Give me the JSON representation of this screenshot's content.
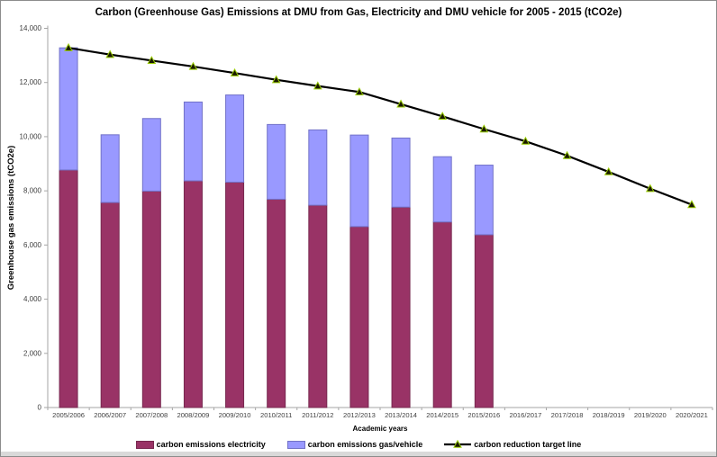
{
  "title": "Carbon (Greenhouse Gas) Emissions at DMU from Gas, Electricity and DMU vehicle for 2005 - 2015 (tCO2e)",
  "chart_data": {
    "type": "bar",
    "subtype": "stacked-bars-with-target-line",
    "title": "Carbon (Greenhouse Gas) Emissions at DMU from Gas, Electricity and DMU vehicle for 2005 - 2015 (tCO2e)",
    "xlabel": "Academic years",
    "ylabel": "Greenhouse gas emissions (tCO2e)",
    "categories": [
      "2005/2006",
      "2006/2007",
      "2007/2008",
      "2008/2009",
      "2009/2010",
      "2010/2011",
      "2011/2012",
      "2012/2013",
      "2013/2014",
      "2014/2015",
      "2015/2016",
      "2016/2017",
      "2017/2018",
      "2018/2019",
      "2019/2020",
      "2020/2021"
    ],
    "series": [
      {
        "name": "carbon emissions electricity",
        "type": "bar",
        "color": "#993366",
        "border_color": "#77284f",
        "values": [
          8770,
          7570,
          7990,
          8370,
          8320,
          7690,
          7470,
          6680,
          7400,
          6850,
          6380,
          null,
          null,
          null,
          null,
          null
        ]
      },
      {
        "name": "carbon emissions gas/vehicle",
        "type": "bar",
        "color": "#9999FF",
        "border_color": "#7272c8",
        "values": [
          4510,
          2500,
          2680,
          2910,
          3220,
          2760,
          2780,
          3380,
          2550,
          2410,
          2570,
          null,
          null,
          null,
          null,
          null
        ]
      },
      {
        "name": "carbon reduction target line",
        "type": "line",
        "color": "#000000",
        "marker": "triangle",
        "marker_fill": "#1a1a00",
        "marker_stroke": "#99cc00",
        "values": [
          13280,
          13030,
          12810,
          12590,
          12350,
          12100,
          11870,
          11650,
          11200,
          10750,
          10280,
          9830,
          9300,
          8700,
          8080,
          7490
        ]
      }
    ],
    "stacked_totals": [
      13280,
      10070,
      10670,
      11280,
      11540,
      10450,
      10250,
      10060,
      9950,
      9260,
      8950,
      null,
      null,
      null,
      null,
      null
    ],
    "ylim": [
      0,
      14000
    ],
    "ytick_step": 2000,
    "ytick_labels": [
      "0",
      "2,000",
      "4,000",
      "6,000",
      "8,000",
      "10,000",
      "12,000",
      "14,000"
    ],
    "grid": false,
    "legend_position": "bottom",
    "axis_color": "#a6a6a6",
    "tick_label_color": "#3f3f3f"
  }
}
